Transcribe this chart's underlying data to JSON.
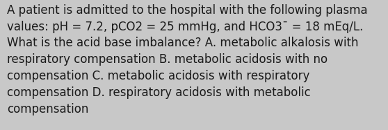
{
  "text_lines": [
    "A patient is admitted to the hospital with the following plasma",
    "values: pH = 7.2, pCO2 = 25 mmHg, and HCO3¯ = 18 mEq/L.",
    "What is the acid base imbalance? A. metabolic alkalosis with",
    "respiratory compensation B. metabolic acidosis with no",
    "compensation C. metabolic acidosis with respiratory",
    "compensation D. respiratory acidosis with metabolic",
    "compensation"
  ],
  "background_color": "#c8c8c8",
  "text_color": "#1a1a1a",
  "font_size": 12.0,
  "fig_width": 5.58,
  "fig_height": 1.88,
  "dpi": 100
}
